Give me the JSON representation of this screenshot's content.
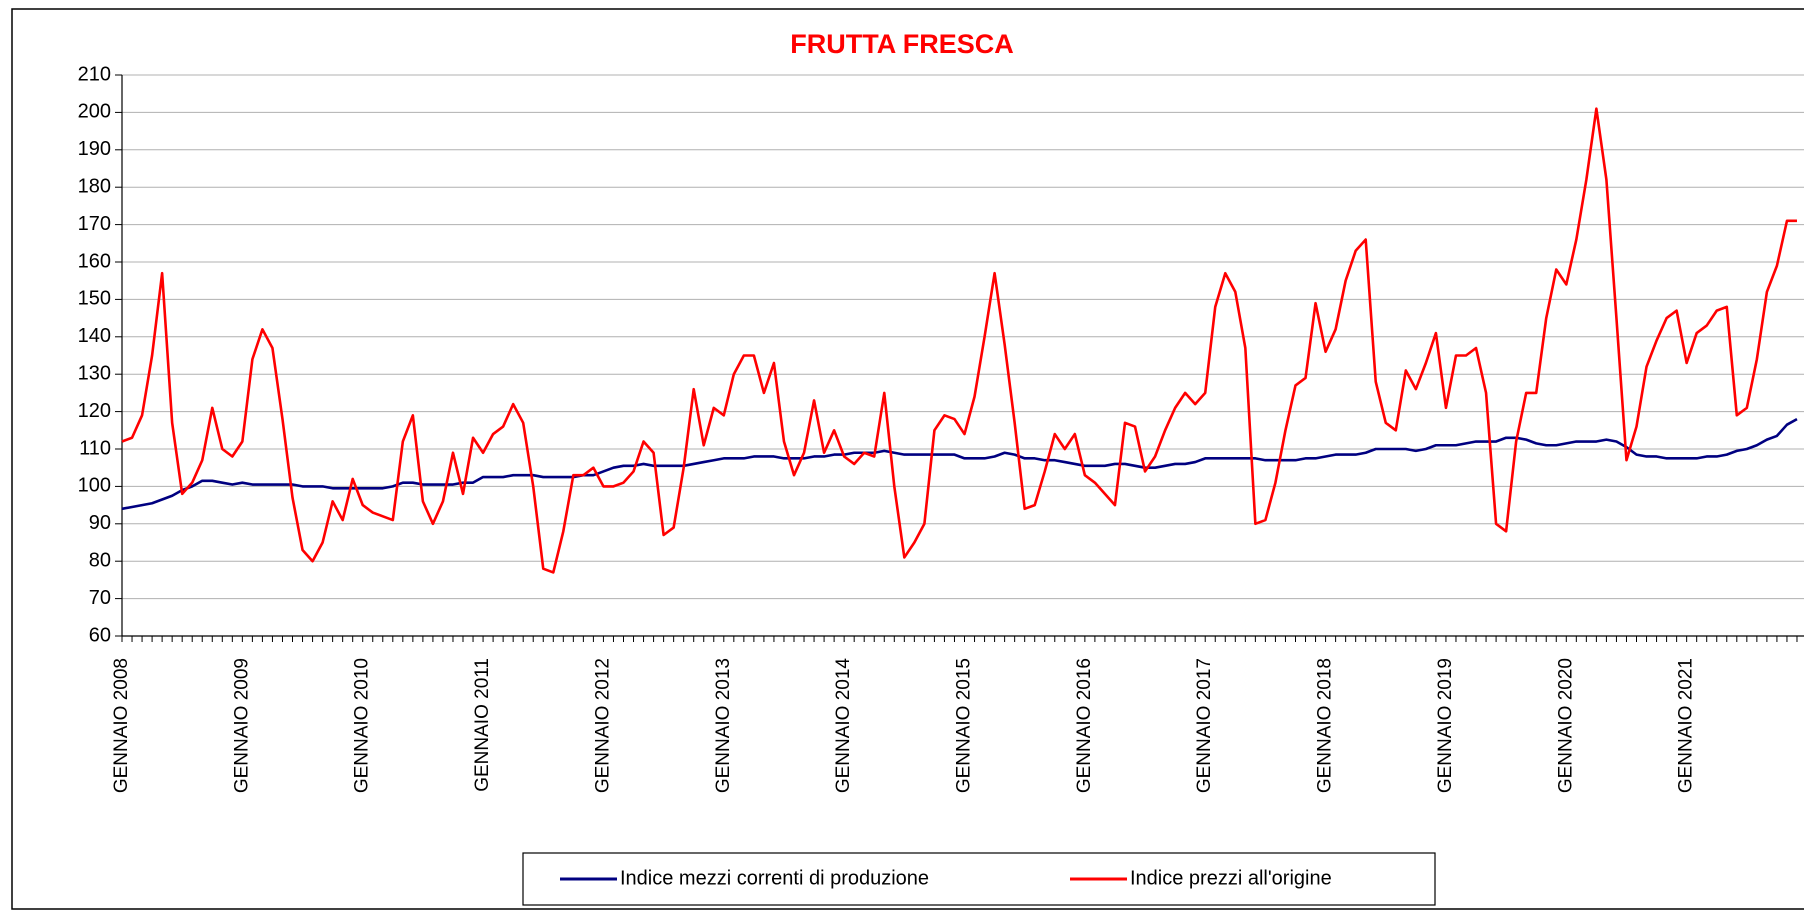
{
  "chart_data": {
    "type": "line",
    "title": "FRUTTA FRESCA",
    "legend": "bottom",
    "grid": true,
    "ylim": [
      60,
      210
    ],
    "yticks": [
      60,
      70,
      80,
      90,
      100,
      110,
      120,
      130,
      140,
      150,
      160,
      170,
      180,
      190,
      200,
      210
    ],
    "categories": [
      "GENNAIO 2008",
      null,
      null,
      null,
      null,
      null,
      null,
      null,
      null,
      null,
      null,
      null,
      "GENNAIO 2009",
      null,
      null,
      null,
      null,
      null,
      null,
      null,
      null,
      null,
      null,
      null,
      "GENNAIO 2010",
      null,
      null,
      null,
      null,
      null,
      null,
      null,
      null,
      null,
      null,
      null,
      "GENNAIO 2011",
      null,
      null,
      null,
      null,
      null,
      null,
      null,
      null,
      null,
      null,
      null,
      "GENNAIO 2012",
      null,
      null,
      null,
      null,
      null,
      null,
      null,
      null,
      null,
      null,
      null,
      "GENNAIO 2013",
      null,
      null,
      null,
      null,
      null,
      null,
      null,
      null,
      null,
      null,
      null,
      "GENNAIO 2014",
      null,
      null,
      null,
      null,
      null,
      null,
      null,
      null,
      null,
      null,
      null,
      "GENNAIO 2015",
      null,
      null,
      null,
      null,
      null,
      null,
      null,
      null,
      null,
      null,
      null,
      "GENNAIO 2016",
      null,
      null,
      null,
      null,
      null,
      null,
      null,
      null,
      null,
      null,
      null,
      "GENNAIO 2017",
      null,
      null,
      null,
      null,
      null,
      null,
      null,
      null,
      null,
      null,
      null,
      "GENNAIO 2018",
      null,
      null,
      null,
      null,
      null,
      null,
      null,
      null,
      null,
      null,
      null,
      "GENNAIO 2019",
      null,
      null,
      null,
      null,
      null,
      null,
      null,
      null,
      null,
      null,
      null,
      "GENNAIO 2020",
      null,
      null,
      null,
      null,
      null,
      null,
      null,
      null,
      null,
      null,
      null,
      "GENNAIO 2021",
      null,
      null,
      null,
      null,
      null,
      null,
      null,
      null,
      null,
      null,
      null
    ],
    "series": [
      {
        "name": "Indice mezzi correnti di produzione",
        "color": "#000080",
        "values": [
          94,
          94.5,
          95,
          95.5,
          96.5,
          97.5,
          99,
          100,
          101.5,
          101.5,
          101,
          100.5,
          101,
          100.5,
          100.5,
          100.5,
          100.5,
          100.5,
          100,
          100,
          100,
          99.5,
          99.5,
          99.5,
          99.5,
          99.5,
          99.5,
          100,
          101,
          101,
          100.5,
          100.5,
          100.5,
          100.5,
          101,
          101,
          102.5,
          102.5,
          102.5,
          103,
          103,
          103,
          102.5,
          102.5,
          102.5,
          102.5,
          103,
          103,
          104,
          105,
          105.5,
          105.5,
          106,
          105.5,
          105.5,
          105.5,
          105.5,
          106,
          106.5,
          107,
          107.5,
          107.5,
          107.5,
          108,
          108,
          108,
          107.5,
          107.5,
          107.5,
          108,
          108,
          108.5,
          108.5,
          109,
          109,
          109,
          109.5,
          109,
          108.5,
          108.5,
          108.5,
          108.5,
          108.5,
          108.5,
          107.5,
          107.5,
          107.5,
          108,
          109,
          108.5,
          107.5,
          107.5,
          107,
          107,
          106.5,
          106,
          105.5,
          105.5,
          105.5,
          106,
          106,
          105.5,
          105,
          105,
          105.5,
          106,
          106,
          106.5,
          107.5,
          107.5,
          107.5,
          107.5,
          107.5,
          107.5,
          107,
          107,
          107,
          107,
          107.5,
          107.5,
          108,
          108.5,
          108.5,
          108.5,
          109,
          110,
          110,
          110,
          110,
          109.5,
          110,
          111,
          111,
          111,
          111.5,
          112,
          112,
          112,
          113,
          113,
          112.5,
          111.5,
          111,
          111,
          111.5,
          112,
          112,
          112,
          112.5,
          112,
          110.5,
          108.5,
          108,
          108,
          107.5,
          107.5,
          107.5,
          107.5,
          108,
          108,
          108.5,
          109.5,
          110,
          111,
          112.5,
          113.5,
          116.5,
          118
        ]
      },
      {
        "name": "Indice prezzi all'origine",
        "color": "#ff0000",
        "values": [
          112,
          113,
          119,
          135,
          157,
          117,
          98,
          101,
          107,
          121,
          110,
          108,
          112,
          134,
          142,
          137,
          118,
          97,
          83,
          80,
          85,
          96,
          91,
          102,
          95,
          93,
          92,
          91,
          112,
          119,
          96,
          90,
          96,
          109,
          98,
          113,
          109,
          114,
          116,
          122,
          117,
          100,
          78,
          77,
          88,
          103,
          103,
          105,
          100,
          100,
          101,
          104,
          112,
          109,
          87,
          89,
          105,
          126,
          111,
          121,
          119,
          130,
          135,
          135,
          125,
          133,
          112,
          103,
          109,
          123,
          109,
          115,
          108,
          106,
          109,
          108,
          125,
          100,
          81,
          85,
          90,
          115,
          119,
          118,
          114,
          124,
          140,
          157,
          138,
          117,
          94,
          95,
          104,
          114,
          110,
          114,
          103,
          101,
          98,
          95,
          117,
          116,
          104,
          108,
          115,
          121,
          125,
          122,
          125,
          148,
          157,
          152,
          137,
          90,
          91,
          101,
          115,
          127,
          129,
          149,
          136,
          142,
          155,
          163,
          166,
          128,
          117,
          115,
          131,
          126,
          133,
          141,
          121,
          135,
          135,
          137,
          125,
          90,
          88,
          112,
          125,
          125,
          145,
          158,
          154,
          166,
          182,
          201,
          182,
          145,
          107,
          116,
          132,
          139,
          145,
          147,
          133,
          141,
          143,
          147,
          148,
          119,
          121,
          134,
          152,
          159,
          171,
          171
        ]
      }
    ]
  }
}
